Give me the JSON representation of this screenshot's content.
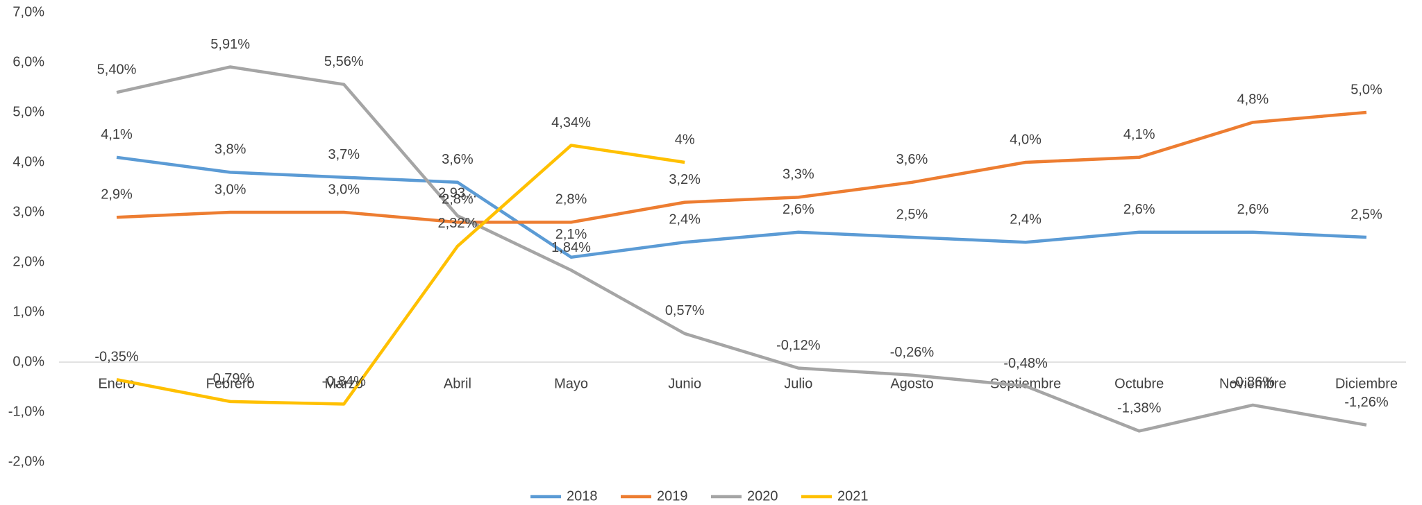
{
  "chart_data": {
    "type": "line",
    "categories": [
      "Enero",
      "Febrero",
      "Marzo",
      "Abril",
      "Mayo",
      "Junio",
      "Julio",
      "Agosto",
      "Septiembre",
      "Octubre",
      "Noviembre",
      "Diciembre"
    ],
    "series": [
      {
        "name": "2018",
        "color": "#5b9bd5",
        "values": [
          4.1,
          3.8,
          3.7,
          3.6,
          2.1,
          2.4,
          2.6,
          2.5,
          2.4,
          2.6,
          2.6,
          2.5
        ],
        "value_labels": [
          "4,1%",
          "3,8%",
          "3,7%",
          "3,6%",
          "2,1%",
          "2,4%",
          "2,6%",
          "2,5%",
          "2,4%",
          "2,6%",
          "2,6%",
          "2,5%"
        ]
      },
      {
        "name": "2019",
        "color": "#ed7d31",
        "values": [
          2.9,
          3.0,
          3.0,
          2.8,
          2.8,
          3.2,
          3.3,
          3.6,
          4.0,
          4.1,
          4.8,
          5.0
        ],
        "value_labels": [
          "2,9%",
          "3,0%",
          "3,0%",
          "2,8%",
          "2,8%",
          "3,2%",
          "3,3%",
          "3,6%",
          "4,0%",
          "4,1%",
          "4,8%",
          "5,0%"
        ]
      },
      {
        "name": "2020",
        "color": "#a5a5a5",
        "values": [
          5.4,
          5.91,
          5.56,
          2.93,
          1.84,
          0.57,
          -0.12,
          -0.26,
          -0.48,
          -1.38,
          -0.86,
          -1.26
        ],
        "value_labels": [
          "5,40%",
          "5,91%",
          "5,56%",
          "2,93...",
          "1,84%",
          "0,57%",
          "-0,12%",
          "-0,26%",
          "-0,48%",
          "-1,38%",
          "-0,86%",
          "-1,26%"
        ]
      },
      {
        "name": "2021",
        "color": "#ffc000",
        "values": [
          -0.35,
          -0.79,
          -0.84,
          2.32,
          4.34,
          4,
          null,
          null,
          null,
          null,
          null,
          null
        ],
        "value_labels": [
          "-0,35%",
          "-0,79%",
          "-0,84%",
          "2,32%",
          "4,34%",
          "4%",
          null,
          null,
          null,
          null,
          null,
          null
        ]
      }
    ],
    "ylim": [
      -2,
      7
    ],
    "yticks": [
      {
        "value": -2,
        "label": "-2,0%"
      },
      {
        "value": -1,
        "label": "-1,0%"
      },
      {
        "value": 0,
        "label": "0,0%"
      },
      {
        "value": 1,
        "label": "1,0%"
      },
      {
        "value": 2,
        "label": "2,0%"
      },
      {
        "value": 3,
        "label": "3,0%"
      },
      {
        "value": 4,
        "label": "4,0%"
      },
      {
        "value": 5,
        "label": "5,0%"
      },
      {
        "value": 6,
        "label": "6,0%"
      },
      {
        "value": 7,
        "label": "7,0%"
      }
    ],
    "grid": false,
    "legend": "bottom"
  }
}
